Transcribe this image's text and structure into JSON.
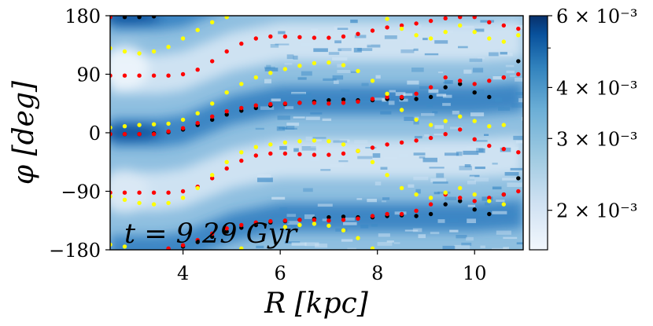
{
  "chart_data": {
    "type": "heatmap",
    "title": "",
    "annotation": "t = 9.29 Gyr",
    "xlabel": "R [kpc]",
    "ylabel": "φ [deg]",
    "xlim": [
      2.5,
      11.0
    ],
    "ylim": [
      -180,
      180
    ],
    "xticks": [
      4,
      6,
      8,
      10
    ],
    "xtick_labels": [
      "4",
      "6",
      "8",
      "10"
    ],
    "yticks": [
      -180,
      -90,
      0,
      90,
      180
    ],
    "ytick_labels": [
      "−180",
      "−90",
      "0",
      "90",
      "180"
    ],
    "colorbar": {
      "scale": "log",
      "vmin": 0.0016,
      "vmax": 0.006,
      "ticks": [
        0.002,
        0.003,
        0.004,
        0.006
      ],
      "tick_labels": [
        "2 × 10⁻³",
        "3 × 10⁻³",
        "4 × 10⁻³",
        "6 × 10⁻³"
      ],
      "colors": [
        "#f2f7fd",
        "#cfe1f2",
        "#9ecae1",
        "#6baed6",
        "#3182bd",
        "#08519c",
        "#08306b"
      ]
    },
    "density_features": {
      "two_arm_phase_deg": [
        [
          2.5,
          0
        ],
        [
          3.5,
          0
        ],
        [
          4.0,
          5
        ],
        [
          5.0,
          35
        ],
        [
          6.0,
          50
        ],
        [
          7.0,
          50
        ],
        [
          8.0,
          50
        ],
        [
          9.0,
          50
        ],
        [
          10.0,
          50
        ],
        [
          11.0,
          55
        ]
      ]
    },
    "series": [
      {
        "name": "black",
        "color": "#000000",
        "points": [
          [
            2.5,
            -2
          ],
          [
            2.8,
            -2
          ],
          [
            3.1,
            -2
          ],
          [
            3.4,
            -1
          ],
          [
            3.7,
            1
          ],
          [
            4.0,
            5
          ],
          [
            4.3,
            12
          ],
          [
            4.6,
            20
          ],
          [
            4.9,
            28
          ],
          [
            5.2,
            34
          ],
          [
            5.5,
            38
          ],
          [
            5.8,
            42
          ],
          [
            6.1,
            44
          ],
          [
            6.4,
            46
          ],
          [
            6.7,
            48
          ],
          [
            7.0,
            50
          ],
          [
            7.3,
            51
          ],
          [
            7.6,
            50
          ],
          [
            7.9,
            50
          ],
          [
            8.2,
            52
          ],
          [
            8.5,
            53
          ],
          [
            8.8,
            52
          ],
          [
            9.1,
            55
          ],
          [
            9.4,
            70
          ],
          [
            9.7,
            75
          ],
          [
            10.0,
            62
          ],
          [
            10.3,
            55
          ],
          [
            10.6,
            85
          ],
          [
            10.9,
            110
          ],
          [
            2.5,
            178
          ],
          [
            2.8,
            178
          ],
          [
            3.1,
            178
          ],
          [
            3.4,
            179
          ],
          [
            3.7,
            -179
          ],
          [
            4.0,
            -175
          ],
          [
            4.3,
            -168
          ],
          [
            4.6,
            -160
          ],
          [
            4.9,
            -152
          ],
          [
            5.2,
            -146
          ],
          [
            5.5,
            -142
          ],
          [
            5.8,
            -138
          ],
          [
            6.1,
            -136
          ],
          [
            6.4,
            -134
          ],
          [
            6.7,
            -132
          ],
          [
            7.0,
            -130
          ],
          [
            7.3,
            -129
          ],
          [
            7.6,
            -130
          ],
          [
            7.9,
            -130
          ],
          [
            8.2,
            -128
          ],
          [
            8.5,
            -127
          ],
          [
            8.8,
            -128
          ],
          [
            9.1,
            -125
          ],
          [
            9.4,
            -110
          ],
          [
            9.7,
            -105
          ],
          [
            10.0,
            -118
          ],
          [
            10.3,
            -125
          ],
          [
            10.6,
            -95
          ],
          [
            10.9,
            -70
          ]
        ]
      },
      {
        "name": "red",
        "color": "#ff0000",
        "points": [
          [
            2.5,
            88
          ],
          [
            2.8,
            88
          ],
          [
            3.1,
            88
          ],
          [
            3.4,
            88
          ],
          [
            3.7,
            88
          ],
          [
            4.0,
            90
          ],
          [
            4.3,
            97
          ],
          [
            4.6,
            110
          ],
          [
            4.9,
            125
          ],
          [
            5.2,
            137
          ],
          [
            5.5,
            145
          ],
          [
            5.8,
            148
          ],
          [
            6.1,
            148
          ],
          [
            6.4,
            147
          ],
          [
            6.7,
            146
          ],
          [
            7.0,
            146
          ],
          [
            7.3,
            148
          ],
          [
            7.6,
            152
          ],
          [
            7.9,
            157
          ],
          [
            8.2,
            162
          ],
          [
            8.5,
            165
          ],
          [
            8.8,
            168
          ],
          [
            9.1,
            172
          ],
          [
            9.4,
            176
          ],
          [
            9.7,
            178
          ],
          [
            10.0,
            178
          ],
          [
            10.3,
            170
          ],
          [
            10.6,
            165
          ],
          [
            10.9,
            160
          ],
          [
            2.5,
            -2
          ],
          [
            2.8,
            -2
          ],
          [
            3.1,
            -2
          ],
          [
            3.4,
            -2
          ],
          [
            3.7,
            2
          ],
          [
            4.0,
            7
          ],
          [
            4.3,
            15
          ],
          [
            4.6,
            25
          ],
          [
            4.9,
            33
          ],
          [
            5.2,
            38
          ],
          [
            5.5,
            42
          ],
          [
            5.8,
            44
          ],
          [
            6.1,
            45
          ],
          [
            6.4,
            46
          ],
          [
            6.7,
            46
          ],
          [
            7.0,
            45
          ],
          [
            7.3,
            46
          ],
          [
            7.6,
            48
          ],
          [
            7.9,
            52
          ],
          [
            8.2,
            55
          ],
          [
            8.5,
            55
          ],
          [
            8.8,
            60
          ],
          [
            9.1,
            70
          ],
          [
            9.4,
            85
          ],
          [
            9.7,
            80
          ],
          [
            10.0,
            75
          ],
          [
            10.3,
            80
          ],
          [
            10.6,
            85
          ],
          [
            10.9,
            90
          ],
          [
            2.5,
            -92
          ],
          [
            2.8,
            -92
          ],
          [
            3.1,
            -92
          ],
          [
            3.4,
            -92
          ],
          [
            3.7,
            -92
          ],
          [
            4.0,
            -90
          ],
          [
            4.3,
            -83
          ],
          [
            4.6,
            -70
          ],
          [
            4.9,
            -55
          ],
          [
            5.2,
            -43
          ],
          [
            5.5,
            -35
          ],
          [
            5.8,
            -32
          ],
          [
            6.1,
            -32
          ],
          [
            6.4,
            -33
          ],
          [
            6.7,
            -34
          ],
          [
            7.0,
            -34
          ],
          [
            7.3,
            -32
          ],
          [
            7.6,
            -28
          ],
          [
            7.9,
            -23
          ],
          [
            8.2,
            -18
          ],
          [
            8.5,
            -15
          ],
          [
            8.8,
            -12
          ],
          [
            9.1,
            -8
          ],
          [
            9.4,
            -2
          ],
          [
            9.7,
            5
          ],
          [
            10.0,
            -10
          ],
          [
            10.3,
            -20
          ],
          [
            10.6,
            -25
          ],
          [
            10.9,
            -30
          ],
          [
            2.5,
            178
          ],
          [
            3.7,
            -178
          ],
          [
            4.0,
            -173
          ],
          [
            4.3,
            -165
          ],
          [
            4.6,
            -155
          ],
          [
            4.9,
            -147
          ],
          [
            5.2,
            -142
          ],
          [
            5.5,
            -138
          ],
          [
            5.8,
            -136
          ],
          [
            6.1,
            -135
          ],
          [
            6.4,
            -134
          ],
          [
            6.7,
            -134
          ],
          [
            7.0,
            -135
          ],
          [
            7.3,
            -134
          ],
          [
            7.6,
            -132
          ],
          [
            7.9,
            -128
          ],
          [
            8.2,
            -125
          ],
          [
            8.5,
            -125
          ],
          [
            8.8,
            -120
          ],
          [
            9.1,
            -110
          ],
          [
            9.4,
            -95
          ],
          [
            9.7,
            -100
          ],
          [
            10.0,
            -105
          ],
          [
            10.3,
            -100
          ],
          [
            10.6,
            -95
          ],
          [
            10.9,
            -90
          ]
        ]
      },
      {
        "name": "yellow",
        "color": "#ffff00",
        "points": [
          [
            2.5,
            130
          ],
          [
            2.8,
            125
          ],
          [
            3.1,
            122
          ],
          [
            3.4,
            125
          ],
          [
            3.7,
            132
          ],
          [
            4.0,
            145
          ],
          [
            4.3,
            158
          ],
          [
            4.6,
            170
          ],
          [
            4.9,
            178
          ],
          [
            5.2,
            -178
          ],
          [
            2.5,
            8
          ],
          [
            2.8,
            10
          ],
          [
            3.1,
            12
          ],
          [
            3.4,
            13
          ],
          [
            3.7,
            14
          ],
          [
            4.0,
            20
          ],
          [
            4.3,
            30
          ],
          [
            4.6,
            45
          ],
          [
            4.9,
            62
          ],
          [
            5.2,
            75
          ],
          [
            5.5,
            85
          ],
          [
            5.8,
            92
          ],
          [
            6.1,
            98
          ],
          [
            6.4,
            103
          ],
          [
            6.7,
            107
          ],
          [
            7.0,
            108
          ],
          [
            7.3,
            104
          ],
          [
            7.6,
            95
          ],
          [
            7.9,
            80
          ],
          [
            8.2,
            60
          ],
          [
            8.5,
            35
          ],
          [
            8.8,
            20
          ],
          [
            9.1,
            12
          ],
          [
            9.4,
            18
          ],
          [
            9.7,
            25
          ],
          [
            10.0,
            18
          ],
          [
            10.3,
            10
          ],
          [
            10.6,
            12
          ],
          [
            2.5,
            -98
          ],
          [
            2.8,
            -103
          ],
          [
            3.1,
            -108
          ],
          [
            3.4,
            -110
          ],
          [
            3.7,
            -108
          ],
          [
            4.0,
            -100
          ],
          [
            4.3,
            -85
          ],
          [
            4.6,
            -65
          ],
          [
            4.9,
            -45
          ],
          [
            5.2,
            -30
          ],
          [
            5.5,
            -22
          ],
          [
            5.8,
            -18
          ],
          [
            6.1,
            -15
          ],
          [
            6.4,
            -13
          ],
          [
            6.7,
            -12
          ],
          [
            7.0,
            -13
          ],
          [
            7.3,
            -18
          ],
          [
            7.6,
            -28
          ],
          [
            7.9,
            -45
          ],
          [
            8.2,
            -65
          ],
          [
            8.5,
            -85
          ],
          [
            8.8,
            -95
          ],
          [
            9.1,
            -100
          ],
          [
            9.4,
            -92
          ],
          [
            9.7,
            -85
          ],
          [
            10.0,
            -95
          ],
          [
            10.3,
            -105
          ],
          [
            10.6,
            -110
          ],
          [
            2.5,
            -172
          ],
          [
            2.8,
            -175
          ],
          [
            6.1,
            -145
          ],
          [
            6.4,
            -142
          ],
          [
            6.7,
            -140
          ],
          [
            7.0,
            -143
          ],
          [
            7.3,
            -150
          ],
          [
            7.6,
            -162
          ],
          [
            7.9,
            -178
          ],
          [
            8.2,
            175
          ],
          [
            8.5,
            160
          ],
          [
            8.8,
            150
          ],
          [
            9.1,
            145
          ],
          [
            9.4,
            155
          ],
          [
            9.7,
            165
          ],
          [
            10.0,
            155
          ],
          [
            10.3,
            145
          ],
          [
            10.6,
            140
          ],
          [
            10.9,
            150
          ]
        ]
      }
    ]
  }
}
